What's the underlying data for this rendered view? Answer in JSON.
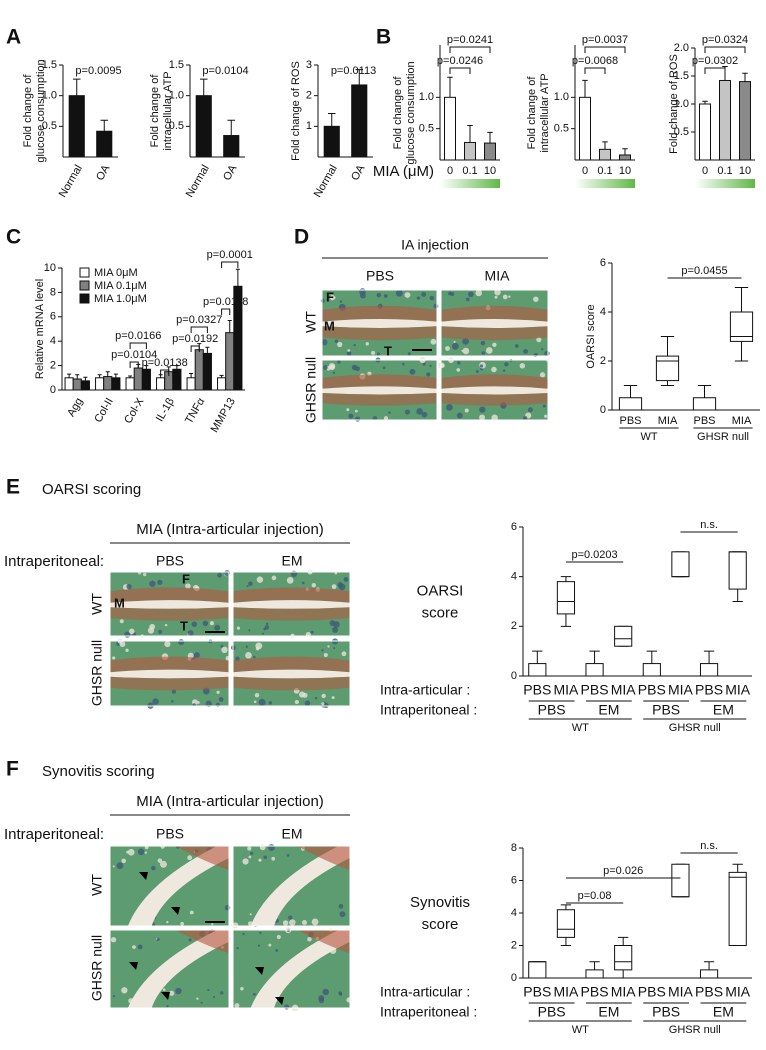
{
  "panels": [
    "A",
    "B",
    "C",
    "D",
    "E",
    "F"
  ],
  "panel_d": {
    "header": "IA injection",
    "columns": [
      "PBS",
      "MIA"
    ],
    "rows": [
      "WT",
      "GHSR null"
    ],
    "markers": [
      "F",
      "M",
      "T"
    ]
  },
  "panel_e": {
    "title": "OARSI scoring",
    "header": "MIA (Intra-articular injection)",
    "row_label": "Intraperitoneal:",
    "columns": [
      "PBS",
      "EM"
    ],
    "rows": [
      "WT",
      "GHSR null"
    ],
    "markers": [
      "F",
      "M",
      "T"
    ]
  },
  "panel_f": {
    "title": "Synovitis scoring",
    "header": "MIA (Intra-articular injection)",
    "row_label": "Intraperitoneal:",
    "columns": [
      "PBS",
      "EM"
    ],
    "rows": [
      "WT",
      "GHSR null"
    ]
  },
  "chart_data": [
    {
      "type": "bar",
      "ylabel": [
        "Fold change of",
        "glucose consumption"
      ],
      "categories": [
        "Normal",
        "OA"
      ],
      "values": [
        1.0,
        0.42
      ],
      "errors": [
        0.27,
        0.18
      ],
      "colors": [
        "#111111",
        "#111111"
      ],
      "ylim": [
        0,
        1.5
      ],
      "yticks": [
        0.5,
        {
          "value": 1,
          "label": "1.0"
        },
        1.5
      ],
      "annotations": [
        "p=0.0095"
      ]
    },
    {
      "type": "bar",
      "ylabel": [
        "Fold change of",
        "intracellular ATP"
      ],
      "categories": [
        "Normal",
        "OA"
      ],
      "values": [
        1.0,
        0.35
      ],
      "errors": [
        0.27,
        0.25
      ],
      "colors": [
        "#111111",
        "#111111"
      ],
      "ylim": [
        0,
        1.5
      ],
      "yticks": [
        0.5,
        {
          "value": 1,
          "label": "1.0"
        },
        1.5
      ],
      "annotations": [
        "p=0.0104"
      ]
    },
    {
      "type": "bar",
      "ylabel": [
        "Fold change of ROS"
      ],
      "categories": [
        "Normal",
        "OA"
      ],
      "values": [
        1.0,
        2.35
      ],
      "errors": [
        0.42,
        0.5
      ],
      "colors": [
        "#111111",
        "#111111"
      ],
      "ylim": [
        0,
        3
      ],
      "yticks": [
        1,
        2,
        3
      ],
      "annotations": [
        "p=0.0113"
      ]
    },
    {
      "type": "bar",
      "ylabel": [
        "Fold change of",
        "glucose consumption"
      ],
      "xlabel": "MIA (μM)",
      "categories": [
        "0",
        "0.1",
        "10"
      ],
      "values": [
        1.0,
        0.28,
        0.27
      ],
      "errors": [
        0.32,
        0.27,
        0.17
      ],
      "colors": [
        "#ffffff",
        "#c4c4c4",
        "#8a8a8a"
      ],
      "ylim": [
        0,
        1.5
      ],
      "yticks": [
        0.5,
        {
          "value": 1,
          "label": "1.0"
        }
      ],
      "annotations": [
        "p=0.0246",
        "p=0.0241"
      ]
    },
    {
      "type": "bar",
      "ylabel": [
        "Fold change of",
        "intracellular ATP"
      ],
      "categories": [
        "0",
        "0.1",
        "10"
      ],
      "values": [
        1.0,
        0.17,
        0.08
      ],
      "errors": [
        0.27,
        0.12,
        0.1
      ],
      "colors": [
        "#ffffff",
        "#c4c4c4",
        "#8a8a8a"
      ],
      "ylim": [
        0,
        1.5
      ],
      "yticks": [
        0.5,
        {
          "value": 1,
          "label": "1.0"
        }
      ],
      "annotations": [
        "p=0.0068",
        "p=0.0037"
      ]
    },
    {
      "type": "bar",
      "ylabel": [
        "Fold change of ROS"
      ],
      "categories": [
        "0",
        "0.1",
        "10"
      ],
      "values": [
        1.0,
        1.42,
        1.4
      ],
      "errors": [
        0.05,
        0.25,
        0.15
      ],
      "colors": [
        "#ffffff",
        "#c4c4c4",
        "#8a8a8a"
      ],
      "ylim": [
        0,
        2
      ],
      "yticks": [
        0.5,
        {
          "value": 1,
          "label": "1.0"
        },
        1.5,
        {
          "value": 2,
          "label": "2.0"
        }
      ],
      "annotations": [
        "p=0.0302",
        "p=0.0324"
      ]
    },
    {
      "type": "bar",
      "ylabel": [
        "Relative mRNA level"
      ],
      "categories": [
        "Agg",
        "Col-II",
        "Col-X",
        "IL-1β",
        "TNFα",
        "MMP13"
      ],
      "series": [
        {
          "name": "MIA 0μM",
          "color": "#ffffff",
          "values": [
            1,
            1,
            1,
            1,
            1,
            1
          ],
          "errors": [
            0.3,
            0.25,
            0.15,
            0.25,
            0.35,
            0.2
          ]
        },
        {
          "name": "MIA 0.1μM",
          "color": "#808080",
          "values": [
            0.9,
            1.1,
            1.8,
            1.5,
            3.3,
            4.7
          ],
          "errors": [
            0.35,
            0.4,
            0.3,
            0.4,
            0.5,
            1.0
          ]
        },
        {
          "name": "MIA 1.0μM",
          "color": "#111111",
          "values": [
            0.75,
            1.0,
            1.7,
            1.7,
            3.0,
            8.5
          ],
          "errors": [
            0.3,
            0.3,
            0.3,
            0.3,
            0.5,
            1.4
          ]
        }
      ],
      "ylim": [
        0,
        10
      ],
      "yticks": [
        0,
        2,
        4,
        6,
        8,
        10
      ],
      "annotations": [
        "p=0.0166",
        "p=0.0104",
        "p=0.0138",
        "p=0.0327",
        "p=0.0192",
        "p=0.0118",
        "p=0.0001"
      ]
    },
    {
      "type": "box",
      "ylabel": [
        "OARSI score"
      ],
      "categories": [
        "PBS",
        "MIA",
        "PBS",
        "MIA"
      ],
      "groups": [
        "WT",
        "GHSR null"
      ],
      "boxes": [
        {
          "min": 0,
          "q1": 0,
          "median": 0,
          "q3": 0.5,
          "max": 1
        },
        {
          "min": 1,
          "q1": 1.2,
          "median": 2,
          "q3": 2.2,
          "max": 3
        },
        {
          "min": 0,
          "q1": 0,
          "median": 0,
          "q3": 0.5,
          "max": 1
        },
        {
          "min": 2,
          "q1": 2.8,
          "median": 3,
          "q3": 4,
          "max": 5
        }
      ],
      "ylim": [
        0,
        6
      ],
      "yticks": [
        0,
        2,
        4,
        6
      ],
      "annotations": [
        "p=0.0455"
      ]
    },
    {
      "type": "box",
      "ylabel": [
        "OARSI",
        "score"
      ],
      "row_label": "Intra-articular :",
      "categories": [
        "PBS",
        "MIA",
        "PBS",
        "MIA",
        "PBS",
        "MIA",
        "PBS",
        "MIA"
      ],
      "treatment_label": "Intraperitoneal :",
      "treatments": [
        "PBS",
        "EM",
        "PBS",
        "EM"
      ],
      "groups": [
        "WT",
        "GHSR null"
      ],
      "boxes": [
        {
          "min": 0,
          "q1": 0,
          "median": 0,
          "q3": 0.5,
          "max": 1
        },
        {
          "min": 2,
          "q1": 2.5,
          "median": 3,
          "q3": 3.8,
          "max": 4
        },
        {
          "min": 0,
          "q1": 0,
          "median": 0,
          "q3": 0.5,
          "max": 1
        },
        {
          "min": 1.2,
          "q1": 1.2,
          "median": 1.5,
          "q3": 2,
          "max": 2
        },
        {
          "min": 0,
          "q1": 0,
          "median": 0,
          "q3": 0.5,
          "max": 1
        },
        {
          "min": 4,
          "q1": 4,
          "median": 4,
          "q3": 5,
          "max": 5
        },
        {
          "min": 0,
          "q1": 0,
          "median": 0,
          "q3": 0.5,
          "max": 1
        },
        {
          "min": 3,
          "q1": 3.5,
          "median": 5,
          "q3": 5,
          "max": 5
        }
      ],
      "ylim": [
        0,
        6
      ],
      "yticks": [
        0,
        2,
        4,
        6
      ],
      "annotations": [
        "p=0.0203",
        "n.s."
      ]
    },
    {
      "type": "box",
      "ylabel": [
        "Synovitis",
        "score"
      ],
      "row_label": "Intra-articular :",
      "categories": [
        "PBS",
        "MIA",
        "PBS",
        "MIA",
        "PBS",
        "MIA",
        "PBS",
        "MIA"
      ],
      "treatment_label": "Intraperitoneal :",
      "treatments": [
        "PBS",
        "EM",
        "PBS",
        "EM"
      ],
      "groups": [
        "WT",
        "GHSR null"
      ],
      "boxes": [
        {
          "min": 0,
          "q1": 0,
          "median": 1,
          "q3": 1,
          "max": 1
        },
        {
          "min": 2,
          "q1": 2.5,
          "median": 3,
          "q3": 4.2,
          "max": 4.5
        },
        {
          "min": 0,
          "q1": 0,
          "median": 0,
          "q3": 0.5,
          "max": 1
        },
        {
          "min": 0,
          "q1": 0.5,
          "median": 1,
          "q3": 2,
          "max": 2.5
        },
        {
          "min": 0,
          "q1": 0,
          "median": 0,
          "q3": 0,
          "max": 0
        },
        {
          "min": 5,
          "q1": 5,
          "median": 5,
          "q3": 7,
          "max": 7
        },
        {
          "min": 0,
          "q1": 0,
          "median": 0,
          "q3": 0.5,
          "max": 1
        },
        {
          "min": 2,
          "q1": 2,
          "median": 6.2,
          "q3": 6.5,
          "max": 7
        }
      ],
      "ylim": [
        0,
        8
      ],
      "yticks": [
        0,
        2,
        4,
        6,
        8
      ],
      "annotations": [
        "p=0.026",
        "p=0.08",
        "n.s."
      ]
    }
  ]
}
